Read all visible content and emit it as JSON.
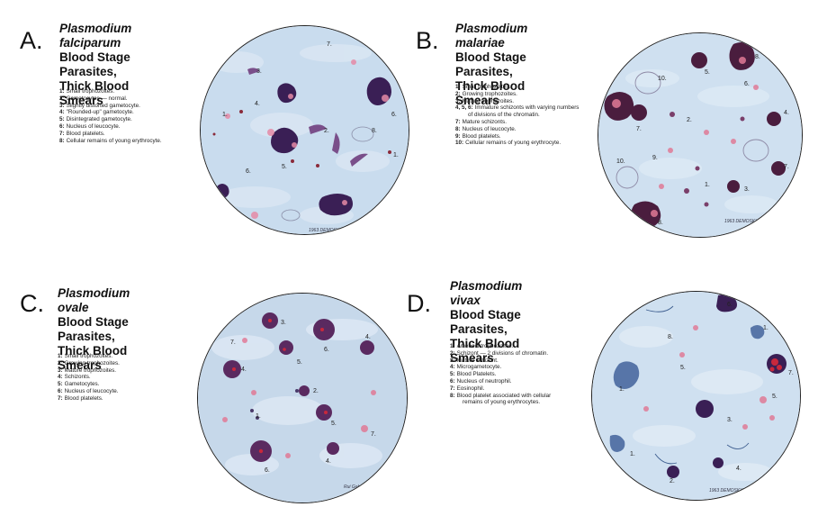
{
  "panels": [
    {
      "letter": "A.",
      "species": "Plasmodium falciparum",
      "line2": "Blood Stage Parasites,",
      "line3": "Thick Blood Smears",
      "legend": [
        {
          "num": "1:",
          "text": "Small trophozoites."
        },
        {
          "num": "2:",
          "text": "Gametocytes — normal."
        },
        {
          "num": "3:",
          "text": "Slightly distorted gametocyte."
        },
        {
          "num": "4:",
          "text": "\"Rounded-up\" gametocyte."
        },
        {
          "num": "5:",
          "text": "Disintegrated gametocyte."
        },
        {
          "num": "6:",
          "text": "Nucleus of leucocyte."
        },
        {
          "num": "7:",
          "text": "Blood platelets."
        },
        {
          "num": "8:",
          "text": "Cellular remains of young erythrocyte."
        }
      ],
      "labels": [
        "1.",
        "2.",
        "3.",
        "4.",
        "5.",
        "6.",
        "6.",
        "7.",
        "8.",
        "1."
      ],
      "signature": "1963 DEMOSKY"
    },
    {
      "letter": "B.",
      "species": "Plasmodium malariae",
      "line2": "Blood Stage Parasites,",
      "line3": "Thick Blood Smears",
      "legend": [
        {
          "num": "1:",
          "text": "Small trophozoites."
        },
        {
          "num": "2:",
          "text": "Growing trophozoites."
        },
        {
          "num": "3:",
          "text": "Mature trophozoites."
        },
        {
          "num": "4, 5, 6:",
          "text": "Immature schizonts with varying numbers",
          "cont": "of divisions of the chromatin."
        },
        {
          "num": "7:",
          "text": "Mature schizonts."
        },
        {
          "num": "8:",
          "text": "Nucleus of leucocyte."
        },
        {
          "num": "9:",
          "text": "Blood platelets."
        },
        {
          "num": "10:",
          "text": "Cellular remains of young erythrocyte."
        }
      ],
      "labels": [
        "1.",
        "2.",
        "3.",
        "4.",
        "5.",
        "6.",
        "7.",
        "7.",
        "8.",
        "8.",
        "9.",
        "10.",
        "10."
      ],
      "signature": "1963 DEMOSKY"
    },
    {
      "letter": "C.",
      "species": "Plasmodium ovale",
      "line2": "Blood Stage Parasites,",
      "line3": "Thick Blood Smears",
      "legend": [
        {
          "num": "1:",
          "text": "Small trophozoites."
        },
        {
          "num": "2:",
          "text": "Growing trophozoites."
        },
        {
          "num": "3:",
          "text": "Mature trophozoites."
        },
        {
          "num": "4:",
          "text": "Schizonts."
        },
        {
          "num": "5:",
          "text": "Gametocytes."
        },
        {
          "num": "6:",
          "text": "Nucleus of leucocyte."
        },
        {
          "num": "7:",
          "text": "Blood platelets."
        }
      ],
      "labels": [
        "1.",
        "2.",
        "3.",
        "4.",
        "4.",
        "4.",
        "5.",
        "5.",
        "6.",
        "6.",
        "7.",
        "7."
      ],
      "signature": "Rui Galvão"
    },
    {
      "letter": "D.",
      "species": "Plasmodium vivax",
      "line2": "Blood Stage Parasites,",
      "line3": "Thick Blood Smears",
      "legend": [
        {
          "num": "1:",
          "text": "Ameboid trophozoites."
        },
        {
          "num": "2:",
          "text": "Schizont — 2 divisions of chromatin."
        },
        {
          "num": "3:",
          "text": "Mature schizont."
        },
        {
          "num": "4:",
          "text": "Microgametocyte."
        },
        {
          "num": "5:",
          "text": "Blood Platelets."
        },
        {
          "num": "6:",
          "text": "Nucleus of neutrophil."
        },
        {
          "num": "7:",
          "text": "Eosinophil."
        },
        {
          "num": "8:",
          "text": "Blood platelet associated with cellular",
          "cont": "remains of young erythrocytes."
        }
      ],
      "labels": [
        "1.",
        "1.",
        "1.",
        "2.",
        "3.",
        "4.",
        "5.",
        "5.",
        "6.",
        "7.",
        "8."
      ],
      "signature": "1963 DEMOSKY"
    }
  ],
  "colors": {
    "smear_bg": "#c8dcee",
    "smear_light": "#dde9f4",
    "parasite_dark": "#3a1f55",
    "parasite_purple": "#6b2a6e",
    "platelet_pink": "#e07a96",
    "stain_red": "#c8283c"
  }
}
